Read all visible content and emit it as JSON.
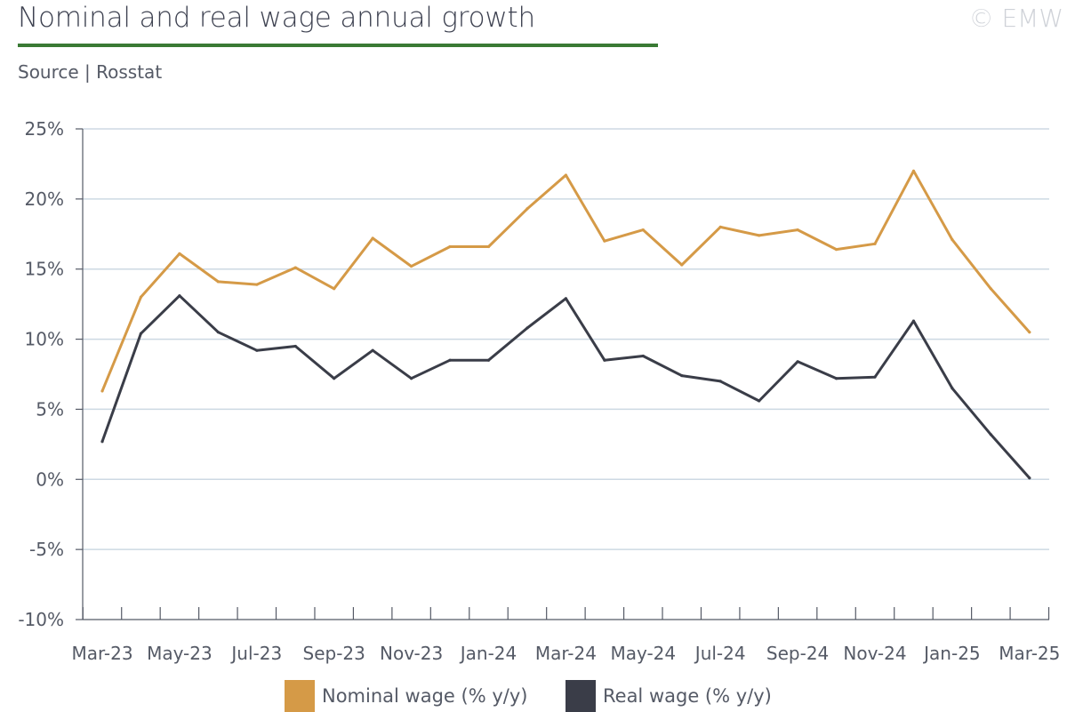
{
  "header": {
    "title": "Nominal and real wage annual growth",
    "source": "Source | Rosstat",
    "copyright": "© EMW"
  },
  "colors": {
    "nominal": "#d59a47",
    "real": "#3a3d48",
    "title_rule": "#3a7a34",
    "grid": "#cdd9e3",
    "axis": "#555a66"
  },
  "chart_data": {
    "type": "line",
    "title": "Nominal and real wage annual growth",
    "x": [
      "Mar-23",
      "Apr-23",
      "May-23",
      "Jun-23",
      "Jul-23",
      "Aug-23",
      "Sep-23",
      "Oct-23",
      "Nov-23",
      "Dec-23",
      "Jan-24",
      "Feb-24",
      "Mar-24",
      "Apr-24",
      "May-24",
      "Jun-24",
      "Jul-24",
      "Aug-24",
      "Sep-24",
      "Oct-24",
      "Nov-24",
      "Dec-24",
      "Jan-25",
      "Feb-25",
      "Mar-25"
    ],
    "x_tick_labels": [
      "Mar-23",
      "May-23",
      "Jul-23",
      "Sep-23",
      "Nov-23",
      "Jan-24",
      "Mar-24",
      "May-24",
      "Jul-24",
      "Sep-24",
      "Nov-24",
      "Jan-25",
      "Mar-25"
    ],
    "y_ticks": [
      25,
      20,
      15,
      10,
      5,
      0,
      -5,
      -10
    ],
    "y_tick_labels": [
      "25%",
      "20%",
      "15%",
      "10%",
      "5%",
      "0%",
      "-5%",
      "-10%"
    ],
    "ylim": [
      -10,
      25
    ],
    "grid": true,
    "legend_position": "bottom",
    "series": [
      {
        "name": "Nominal wage (% y/y)",
        "color": "#d59a47",
        "values": [
          6.3,
          13.0,
          16.1,
          14.1,
          13.9,
          15.1,
          13.6,
          17.2,
          15.2,
          16.6,
          16.6,
          19.3,
          21.7,
          17.0,
          17.8,
          15.3,
          18.0,
          17.4,
          17.8,
          16.4,
          16.8,
          22.0,
          17.1,
          13.6,
          10.5
        ]
      },
      {
        "name": "Real wage (% y/y)",
        "color": "#3a3d48",
        "values": [
          2.7,
          10.4,
          13.1,
          10.5,
          9.2,
          9.5,
          7.2,
          9.2,
          7.2,
          8.5,
          8.5,
          10.8,
          12.9,
          8.5,
          8.8,
          7.4,
          7.0,
          5.6,
          8.4,
          7.2,
          7.3,
          11.3,
          6.5,
          3.2,
          0.1
        ]
      }
    ]
  }
}
